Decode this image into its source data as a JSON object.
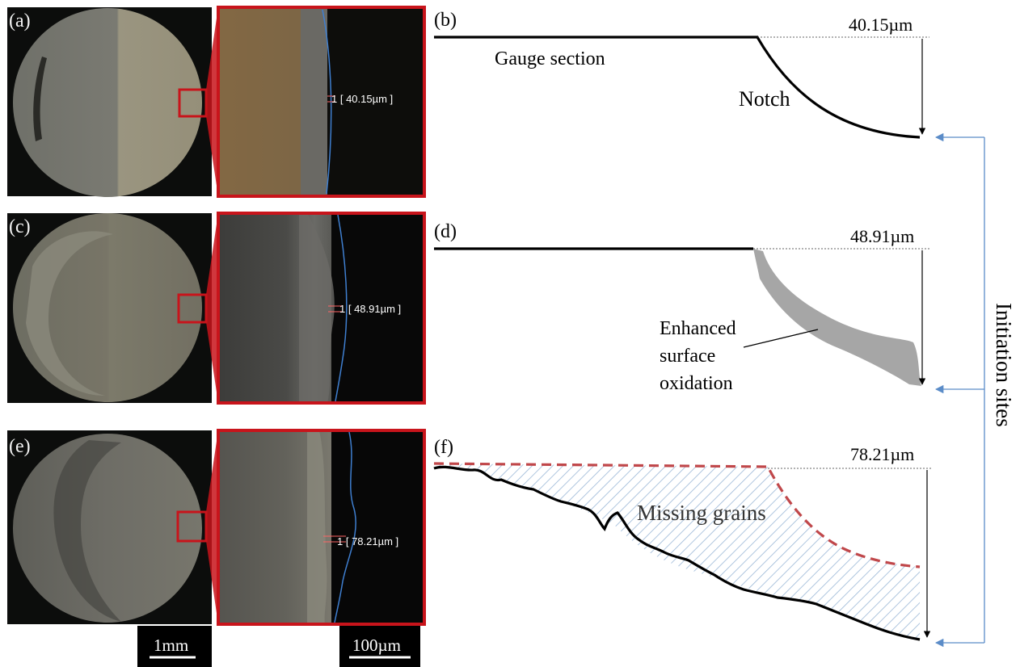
{
  "panels": {
    "a": {
      "label": "(a)",
      "measurement": "1 [ 40.15µm ]"
    },
    "b": {
      "label": "(b)",
      "depth": "40.15µm",
      "gauge_label": "Gauge section",
      "feature_label": "Notch"
    },
    "c": {
      "label": "(c)",
      "measurement": "1 [ 48.91µm ]"
    },
    "d": {
      "label": "(d)",
      "depth": "48.91µm",
      "feature_label_lines": [
        "Enhanced",
        "surface",
        "oxidation"
      ]
    },
    "e": {
      "label": "(e)",
      "measurement": "1 [ 78.21µm ]"
    },
    "f": {
      "label": "(f)",
      "depth": "78.21µm",
      "feature_label": "Missing grains"
    }
  },
  "scale_bars": {
    "macro": "1mm",
    "micro": "100µm"
  },
  "initiation_label": "Initiation sites",
  "colors": {
    "zoom_frame": "#c8141b",
    "arrow_blue": "#5b8cc8",
    "oxidation_fill": "#a6a6a6",
    "missing_grain_hatch": "#9ab7d6",
    "dashed_profile": "#c0474a",
    "micrograph_boundary": "#3f7fd0"
  }
}
